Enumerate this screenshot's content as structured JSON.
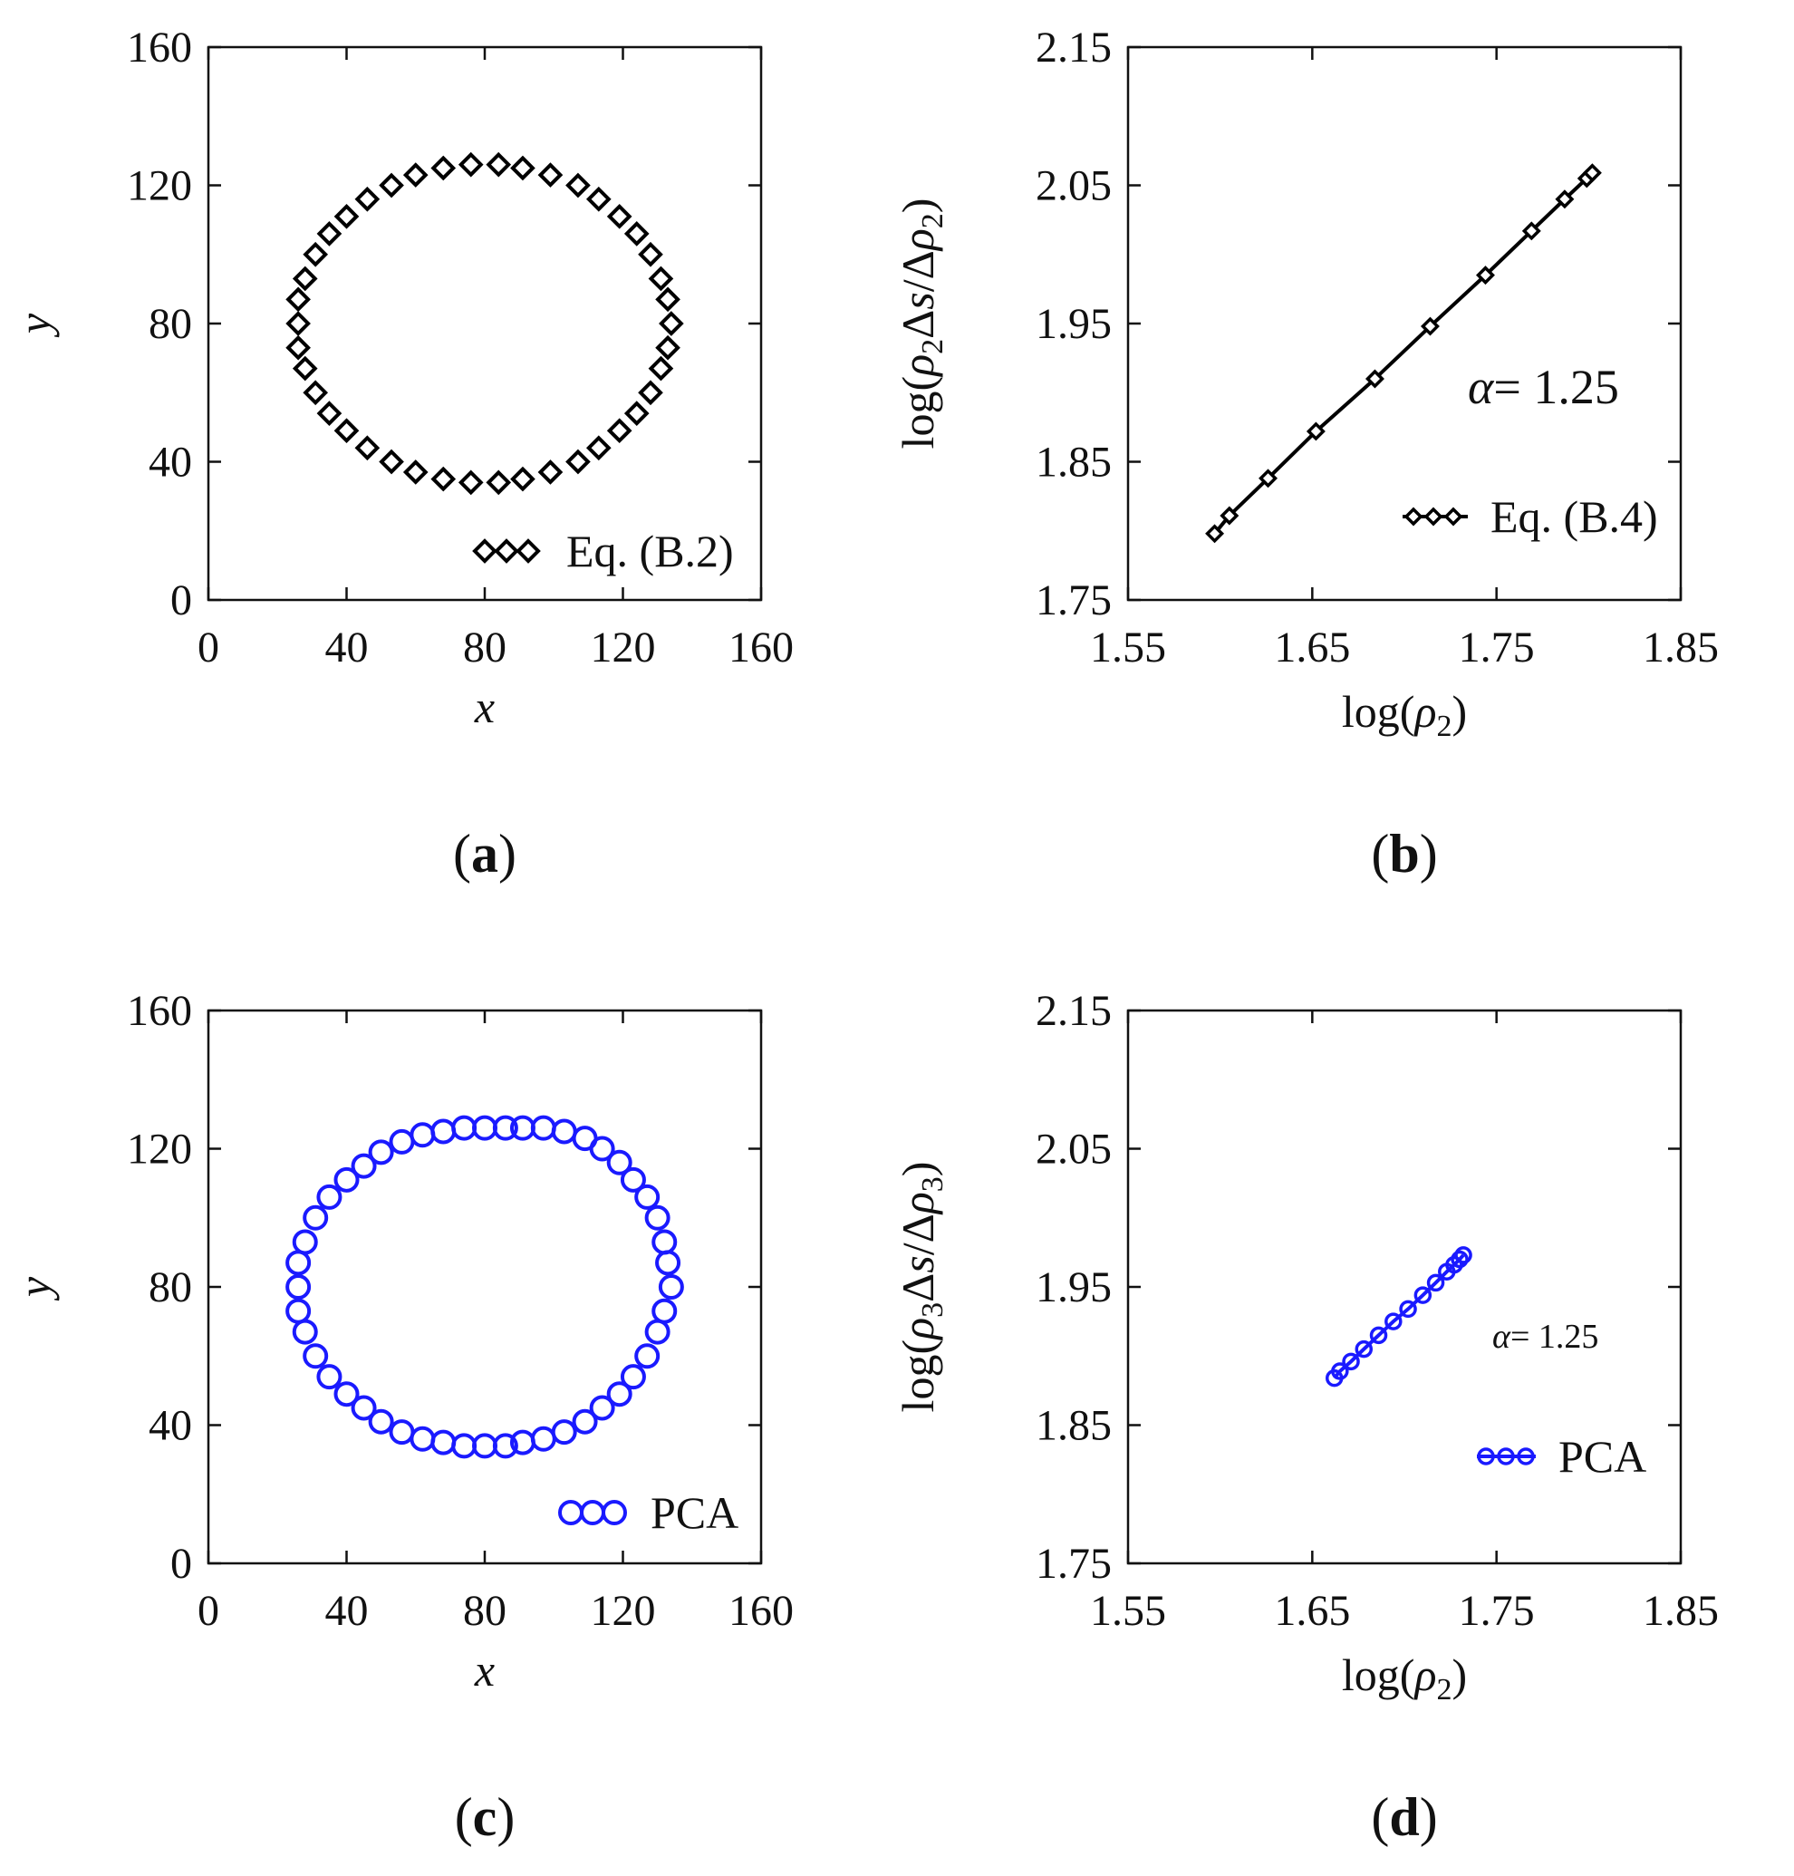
{
  "chart_data": [
    {
      "id": "a",
      "type": "scatter",
      "panel_label": "(a)",
      "panel_letter": "a",
      "xlabel": "x",
      "ylabel": "y",
      "xlim": [
        0,
        160
      ],
      "ylim": [
        0,
        160
      ],
      "xticks": [
        "0",
        "40",
        "80",
        "120",
        "160"
      ],
      "yticks": [
        "0",
        "40",
        "80",
        "120",
        "160"
      ],
      "legend": "Eq. (B.2)",
      "legend_position": "bottom-right",
      "marker": "diamond",
      "color": "#000000",
      "series": [
        {
          "name": "Eq. (B.2)",
          "points": [
            [
              134,
              80
            ],
            [
              133,
              87
            ],
            [
              131,
              93
            ],
            [
              128,
              100
            ],
            [
              124,
              106
            ],
            [
              119,
              111
            ],
            [
              113,
              116
            ],
            [
              107,
              120
            ],
            [
              99,
              123
            ],
            [
              91,
              125
            ],
            [
              84,
              126
            ],
            [
              76,
              126
            ],
            [
              68,
              125
            ],
            [
              60,
              123
            ],
            [
              53,
              120
            ],
            [
              46,
              116
            ],
            [
              40,
              111
            ],
            [
              35,
              106
            ],
            [
              31,
              100
            ],
            [
              28,
              93
            ],
            [
              26,
              87
            ],
            [
              26,
              80
            ],
            [
              26,
              73
            ],
            [
              28,
              67
            ],
            [
              31,
              60
            ],
            [
              35,
              54
            ],
            [
              40,
              49
            ],
            [
              46,
              44
            ],
            [
              53,
              40
            ],
            [
              60,
              37
            ],
            [
              68,
              35
            ],
            [
              76,
              34
            ],
            [
              84,
              34
            ],
            [
              91,
              35
            ],
            [
              99,
              37
            ],
            [
              107,
              40
            ],
            [
              113,
              44
            ],
            [
              119,
              49
            ],
            [
              124,
              54
            ],
            [
              128,
              60
            ],
            [
              131,
              67
            ],
            [
              133,
              73
            ]
          ]
        }
      ]
    },
    {
      "id": "b",
      "type": "line",
      "panel_label": "(b)",
      "panel_letter": "b",
      "xlabel": "log(ρ2)",
      "ylabel": "log(ρ2Δs/Δρ2)",
      "xlim": [
        1.55,
        1.85
      ],
      "ylim": [
        1.75,
        2.15
      ],
      "xticks": [
        "1.55",
        "1.65",
        "1.75",
        "1.85"
      ],
      "yticks": [
        "1.75",
        "1.85",
        "1.95",
        "2.05",
        "2.15"
      ],
      "legend": "Eq. (B.4)",
      "legend_position": "bottom-right",
      "annotation": "α = 1.25",
      "annotation_symbol": "α",
      "annotation_value": "= 1.25",
      "marker": "diamond-small",
      "color": "#000000",
      "series": [
        {
          "name": "Eq. (B.4)",
          "x": [
            1.597,
            1.605,
            1.626,
            1.652,
            1.684,
            1.714,
            1.744,
            1.769,
            1.787,
            1.799,
            1.802
          ],
          "y": [
            1.798,
            1.811,
            1.838,
            1.872,
            1.91,
            1.948,
            1.985,
            2.017,
            2.04,
            2.055,
            2.059
          ]
        }
      ]
    },
    {
      "id": "c",
      "type": "scatter",
      "panel_label": "(c)",
      "panel_letter": "c",
      "xlabel": "x",
      "ylabel": "y",
      "xlim": [
        0,
        160
      ],
      "ylim": [
        0,
        160
      ],
      "xticks": [
        "0",
        "40",
        "80",
        "120",
        "160"
      ],
      "yticks": [
        "0",
        "40",
        "80",
        "120",
        "160"
      ],
      "legend": "PCA",
      "legend_position": "bottom-right",
      "marker": "circle",
      "color": "#1a1aff",
      "series": [
        {
          "name": "PCA",
          "points": [
            [
              134,
              80
            ],
            [
              133,
              87
            ],
            [
              132,
              93
            ],
            [
              130,
              100
            ],
            [
              127,
              106
            ],
            [
              123,
              111
            ],
            [
              119,
              116
            ],
            [
              114,
              120
            ],
            [
              109,
              123
            ],
            [
              103,
              125
            ],
            [
              97,
              126
            ],
            [
              91,
              126
            ],
            [
              86,
              126
            ],
            [
              80,
              126
            ],
            [
              74,
              126
            ],
            [
              68,
              125
            ],
            [
              62,
              124
            ],
            [
              56,
              122
            ],
            [
              50,
              119
            ],
            [
              45,
              115
            ],
            [
              40,
              111
            ],
            [
              35,
              106
            ],
            [
              31,
              100
            ],
            [
              28,
              93
            ],
            [
              26,
              87
            ],
            [
              26,
              80
            ],
            [
              26,
              73
            ],
            [
              28,
              67
            ],
            [
              31,
              60
            ],
            [
              35,
              54
            ],
            [
              40,
              49
            ],
            [
              45,
              45
            ],
            [
              50,
              41
            ],
            [
              56,
              38
            ],
            [
              62,
              36
            ],
            [
              68,
              35
            ],
            [
              74,
              34
            ],
            [
              80,
              34
            ],
            [
              86,
              34
            ],
            [
              91,
              35
            ],
            [
              97,
              36
            ],
            [
              103,
              38
            ],
            [
              109,
              41
            ],
            [
              114,
              45
            ],
            [
              119,
              49
            ],
            [
              123,
              54
            ],
            [
              127,
              60
            ],
            [
              130,
              67
            ],
            [
              132,
              73
            ]
          ]
        }
      ]
    },
    {
      "id": "d",
      "type": "line",
      "panel_label": "(d)",
      "panel_letter": "d",
      "xlabel": "log(ρ2)",
      "ylabel": "log(ρ3Δs/Δρ3)",
      "xlim": [
        1.55,
        1.85
      ],
      "ylim": [
        1.75,
        2.15
      ],
      "xticks": [
        "1.55",
        "1.65",
        "1.75",
        "1.85"
      ],
      "yticks": [
        "1.75",
        "1.85",
        "1.95",
        "2.05",
        "2.15"
      ],
      "legend": "PCA",
      "legend_position": "bottom-right",
      "annotation": "α = 1.25",
      "annotation_symbol": "α",
      "annotation_value": "= 1.25",
      "marker": "circle-small",
      "color": "#1a1aff",
      "series": [
        {
          "name": "PCA",
          "x": [
            1.662,
            1.665,
            1.671,
            1.678,
            1.686,
            1.694,
            1.702,
            1.71,
            1.717,
            1.723,
            1.727,
            1.73,
            1.732
          ],
          "y": [
            1.884,
            1.889,
            1.896,
            1.905,
            1.915,
            1.925,
            1.934,
            1.944,
            1.953,
            1.961,
            1.966,
            1.97,
            1.973
          ]
        }
      ]
    }
  ]
}
